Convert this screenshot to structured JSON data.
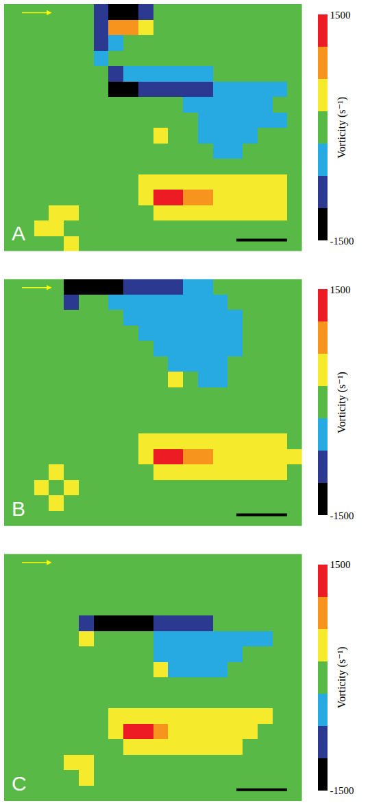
{
  "chart_data": [
    {
      "type": "heatmap",
      "panel": "A",
      "tick_labels": false,
      "colors": [
        "#000000",
        "#2b3990",
        "#27aae1",
        "#58b947",
        "#f5eb2c",
        "#f7941e",
        "#ed1c24"
      ],
      "colorbar": {
        "range": [
          -1500,
          1500
        ],
        "ticks": [
          1500,
          -1500
        ],
        "title": "Vorticity (s⁻¹)"
      },
      "cells": [
        [
          0,
          0,
          0,
          0,
          0,
          0,
          -1000,
          -1500,
          -1500,
          -1000,
          0,
          0,
          0,
          0,
          0,
          0,
          0,
          0,
          0,
          0
        ],
        [
          0,
          0,
          0,
          0,
          0,
          0,
          -1000,
          1000,
          1000,
          500,
          0,
          0,
          0,
          0,
          0,
          0,
          0,
          0,
          0,
          0
        ],
        [
          0,
          0,
          0,
          0,
          0,
          0,
          -1000,
          -500,
          0,
          0,
          0,
          0,
          0,
          0,
          0,
          0,
          0,
          0,
          0,
          0
        ],
        [
          0,
          0,
          0,
          0,
          0,
          0,
          -500,
          0,
          0,
          0,
          0,
          0,
          0,
          0,
          0,
          0,
          0,
          0,
          0,
          0
        ],
        [
          0,
          0,
          0,
          0,
          0,
          0,
          0,
          -1000,
          -500,
          -500,
          -500,
          -500,
          -500,
          -500,
          0,
          0,
          0,
          0,
          0,
          0
        ],
        [
          0,
          0,
          0,
          0,
          0,
          0,
          0,
          -1500,
          -1500,
          -1000,
          -1000,
          -1000,
          -1000,
          -1000,
          -500,
          -500,
          -500,
          -500,
          -500,
          0
        ],
        [
          0,
          0,
          0,
          0,
          0,
          0,
          0,
          0,
          0,
          0,
          0,
          0,
          -500,
          -500,
          -500,
          -500,
          -500,
          -500,
          0,
          0
        ],
        [
          0,
          0,
          0,
          0,
          0,
          0,
          0,
          0,
          0,
          0,
          0,
          0,
          0,
          -500,
          -500,
          -500,
          -500,
          -500,
          -500,
          0
        ],
        [
          0,
          0,
          0,
          0,
          0,
          0,
          0,
          0,
          0,
          0,
          500,
          0,
          0,
          -500,
          -500,
          -500,
          -500,
          0,
          0,
          0
        ],
        [
          0,
          0,
          0,
          0,
          0,
          0,
          0,
          0,
          0,
          0,
          0,
          0,
          0,
          0,
          -500,
          -500,
          0,
          0,
          0,
          0
        ],
        [
          0,
          0,
          0,
          0,
          0,
          0,
          0,
          0,
          0,
          0,
          0,
          0,
          0,
          0,
          0,
          0,
          0,
          0,
          0,
          0
        ],
        [
          0,
          0,
          0,
          0,
          0,
          0,
          0,
          0,
          0,
          500,
          500,
          500,
          500,
          500,
          500,
          500,
          500,
          500,
          500,
          0
        ],
        [
          0,
          0,
          0,
          0,
          0,
          0,
          0,
          0,
          0,
          500,
          1500,
          1500,
          1000,
          1000,
          500,
          500,
          500,
          500,
          500,
          0
        ],
        [
          0,
          0,
          0,
          500,
          500,
          0,
          0,
          0,
          0,
          0,
          500,
          500,
          500,
          500,
          500,
          500,
          500,
          500,
          500,
          0
        ],
        [
          0,
          0,
          500,
          500,
          0,
          0,
          0,
          0,
          0,
          0,
          0,
          0,
          0,
          0,
          0,
          0,
          0,
          0,
          0,
          0
        ],
        [
          0,
          0,
          0,
          0,
          500,
          0,
          0,
          0,
          0,
          0,
          0,
          0,
          0,
          0,
          0,
          0,
          0,
          0,
          0,
          0
        ]
      ]
    },
    {
      "type": "heatmap",
      "panel": "B",
      "tick_labels": false,
      "colors": [
        "#000000",
        "#2b3990",
        "#27aae1",
        "#58b947",
        "#f5eb2c",
        "#f7941e",
        "#ed1c24"
      ],
      "colorbar": {
        "range": [
          -1500,
          1500
        ],
        "ticks": [
          1500,
          -1500
        ],
        "title": "Vorticity (s⁻¹)"
      },
      "cells": [
        [
          0,
          0,
          0,
          0,
          -1500,
          -1500,
          -1500,
          -1500,
          -1000,
          -1000,
          -1000,
          -1000,
          -500,
          -500,
          0,
          0,
          0,
          0,
          0,
          0
        ],
        [
          0,
          0,
          0,
          0,
          -1000,
          0,
          0,
          -500,
          -500,
          -500,
          -500,
          -500,
          -500,
          -500,
          -500,
          0,
          0,
          0,
          0,
          0
        ],
        [
          0,
          0,
          0,
          0,
          0,
          0,
          0,
          0,
          -500,
          -500,
          -500,
          -500,
          -500,
          -500,
          -500,
          -500,
          0,
          0,
          0,
          0
        ],
        [
          0,
          0,
          0,
          0,
          0,
          0,
          0,
          0,
          0,
          -500,
          -500,
          -500,
          -500,
          -500,
          -500,
          -500,
          0,
          0,
          0,
          0
        ],
        [
          0,
          0,
          0,
          0,
          0,
          0,
          0,
          0,
          0,
          0,
          -500,
          -500,
          -500,
          -500,
          -500,
          -500,
          0,
          0,
          0,
          0
        ],
        [
          0,
          0,
          0,
          0,
          0,
          0,
          0,
          0,
          0,
          0,
          0,
          -500,
          -500,
          -500,
          -500,
          0,
          0,
          0,
          0,
          0
        ],
        [
          0,
          0,
          0,
          0,
          0,
          0,
          0,
          0,
          0,
          0,
          0,
          500,
          0,
          -500,
          -500,
          0,
          0,
          0,
          0,
          0
        ],
        [
          0,
          0,
          0,
          0,
          0,
          0,
          0,
          0,
          0,
          0,
          0,
          0,
          0,
          0,
          0,
          0,
          0,
          0,
          0,
          0
        ],
        [
          0,
          0,
          0,
          0,
          0,
          0,
          0,
          0,
          0,
          0,
          0,
          0,
          0,
          0,
          0,
          0,
          0,
          0,
          0,
          0
        ],
        [
          0,
          0,
          0,
          0,
          0,
          0,
          0,
          0,
          0,
          0,
          0,
          0,
          0,
          0,
          0,
          0,
          0,
          0,
          0,
          0
        ],
        [
          0,
          0,
          0,
          0,
          0,
          0,
          0,
          0,
          0,
          500,
          500,
          500,
          500,
          500,
          500,
          500,
          500,
          500,
          500,
          0
        ],
        [
          0,
          0,
          0,
          0,
          0,
          0,
          0,
          0,
          0,
          500,
          1500,
          1500,
          1000,
          1000,
          500,
          500,
          500,
          500,
          500,
          500
        ],
        [
          0,
          0,
          0,
          500,
          0,
          0,
          0,
          0,
          0,
          0,
          500,
          500,
          500,
          500,
          500,
          500,
          500,
          500,
          500,
          0
        ],
        [
          0,
          0,
          500,
          0,
          500,
          0,
          0,
          0,
          0,
          0,
          0,
          0,
          0,
          0,
          0,
          0,
          0,
          0,
          0,
          0
        ],
        [
          0,
          0,
          0,
          500,
          0,
          0,
          0,
          0,
          0,
          0,
          0,
          0,
          0,
          0,
          0,
          0,
          0,
          0,
          0,
          0
        ],
        [
          0,
          0,
          0,
          0,
          0,
          0,
          0,
          0,
          0,
          0,
          0,
          0,
          0,
          0,
          0,
          0,
          0,
          0,
          0,
          0
        ]
      ]
    },
    {
      "type": "heatmap",
      "panel": "C",
      "tick_labels": false,
      "colors": [
        "#000000",
        "#2b3990",
        "#27aae1",
        "#58b947",
        "#f5eb2c",
        "#f7941e",
        "#ed1c24"
      ],
      "colorbar": {
        "range": [
          -1500,
          1500
        ],
        "ticks": [
          1500,
          -1500
        ],
        "title": "Vorticity (s⁻¹)"
      },
      "cells": [
        [
          0,
          0,
          0,
          0,
          0,
          0,
          0,
          0,
          0,
          0,
          0,
          0,
          0,
          0,
          0,
          0,
          0,
          0,
          0,
          0
        ],
        [
          0,
          0,
          0,
          0,
          0,
          0,
          0,
          0,
          0,
          0,
          0,
          0,
          0,
          0,
          0,
          0,
          0,
          0,
          0,
          0
        ],
        [
          0,
          0,
          0,
          0,
          0,
          0,
          0,
          0,
          0,
          0,
          0,
          0,
          0,
          0,
          0,
          0,
          0,
          0,
          0,
          0
        ],
        [
          0,
          0,
          0,
          0,
          0,
          0,
          0,
          0,
          0,
          0,
          0,
          0,
          0,
          0,
          0,
          0,
          0,
          0,
          0,
          0
        ],
        [
          0,
          0,
          0,
          0,
          0,
          -1000,
          -1500,
          -1500,
          -1500,
          -1500,
          -1000,
          -1000,
          -1000,
          -1000,
          0,
          0,
          0,
          0,
          0,
          0
        ],
        [
          0,
          0,
          0,
          0,
          0,
          500,
          0,
          0,
          0,
          0,
          -500,
          -500,
          -500,
          -500,
          -500,
          -500,
          -500,
          -500,
          0,
          0
        ],
        [
          0,
          0,
          0,
          0,
          0,
          0,
          0,
          0,
          0,
          0,
          -500,
          -500,
          -500,
          -500,
          -500,
          -500,
          0,
          0,
          0,
          0
        ],
        [
          0,
          0,
          0,
          0,
          0,
          0,
          0,
          0,
          0,
          0,
          500,
          -500,
          -500,
          -500,
          -500,
          0,
          0,
          0,
          0,
          0
        ],
        [
          0,
          0,
          0,
          0,
          0,
          0,
          0,
          0,
          0,
          0,
          0,
          0,
          0,
          0,
          0,
          0,
          0,
          0,
          0,
          0
        ],
        [
          0,
          0,
          0,
          0,
          0,
          0,
          0,
          0,
          0,
          0,
          0,
          0,
          0,
          0,
          0,
          0,
          0,
          0,
          0,
          0
        ],
        [
          0,
          0,
          0,
          0,
          0,
          0,
          0,
          500,
          500,
          500,
          500,
          500,
          500,
          500,
          500,
          500,
          500,
          500,
          0,
          0
        ],
        [
          0,
          0,
          0,
          0,
          0,
          0,
          0,
          500,
          1500,
          1500,
          1000,
          500,
          500,
          500,
          500,
          500,
          500,
          0,
          0,
          0
        ],
        [
          0,
          0,
          0,
          0,
          0,
          0,
          0,
          0,
          500,
          500,
          500,
          500,
          500,
          500,
          500,
          500,
          0,
          0,
          0,
          0
        ],
        [
          0,
          0,
          0,
          0,
          500,
          500,
          0,
          0,
          0,
          0,
          0,
          0,
          0,
          0,
          0,
          0,
          0,
          0,
          0,
          0
        ],
        [
          0,
          0,
          0,
          0,
          0,
          500,
          0,
          0,
          0,
          0,
          0,
          0,
          0,
          0,
          0,
          0,
          0,
          0,
          0,
          0
        ],
        [
          0,
          0,
          0,
          0,
          0,
          0,
          0,
          0,
          0,
          0,
          0,
          0,
          0,
          0,
          0,
          0,
          0,
          0,
          0,
          0
        ]
      ]
    }
  ]
}
